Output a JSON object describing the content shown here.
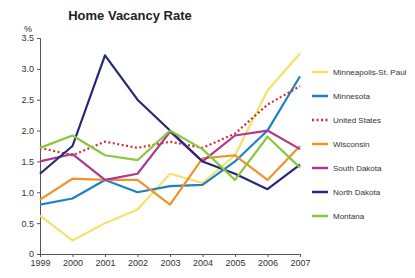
{
  "chart_data": {
    "type": "line",
    "title": "Home Vacancy Rate",
    "y_label": "%",
    "categories": [
      "1999",
      "2000",
      "2001",
      "2002",
      "2003",
      "2004",
      "2005",
      "2006",
      "2007"
    ],
    "ylim": [
      0,
      3.5
    ],
    "yticks": [
      0,
      0.5,
      {
        "value": 1,
        "label": "1.0"
      },
      1.5,
      {
        "value": 2,
        "label": "2.0"
      },
      2.5,
      {
        "value": 3,
        "label": "3.0"
      },
      3.5
    ],
    "grid": false,
    "legend": "right",
    "series": [
      {
        "name": "Minneapolis-St. Paul",
        "color": "#f3e36a",
        "values": [
          0.62,
          0.22,
          0.5,
          0.72,
          1.3,
          1.15,
          1.6,
          2.65,
          3.25
        ]
      },
      {
        "name": "Minnesota",
        "color": "#1f82c4",
        "values": [
          0.8,
          0.9,
          1.2,
          1.0,
          1.1,
          1.12,
          1.5,
          2.0,
          2.88
        ]
      },
      {
        "name": "United States",
        "color": "#c8312f",
        "line_style": "dotted",
        "values": [
          1.72,
          1.6,
          1.82,
          1.72,
          1.82,
          1.72,
          1.95,
          2.42,
          2.72
        ]
      },
      {
        "name": "Wisconsin",
        "color": "#f0922b",
        "values": [
          0.88,
          1.22,
          1.2,
          1.2,
          0.8,
          1.55,
          1.6,
          1.2,
          1.75
        ]
      },
      {
        "name": "South Dakota",
        "color": "#b0388c",
        "values": [
          1.5,
          1.62,
          1.2,
          1.3,
          1.98,
          1.5,
          1.92,
          2.0,
          1.7
        ]
      },
      {
        "name": "North Dakota",
        "color": "#26287a",
        "values": [
          1.3,
          1.75,
          3.22,
          2.5,
          2.0,
          1.5,
          1.3,
          1.05,
          1.45
        ]
      },
      {
        "name": "Montana",
        "color": "#8cc63f",
        "values": [
          1.72,
          1.92,
          1.6,
          1.52,
          2.0,
          1.7,
          1.2,
          1.9,
          1.4
        ]
      }
    ]
  }
}
